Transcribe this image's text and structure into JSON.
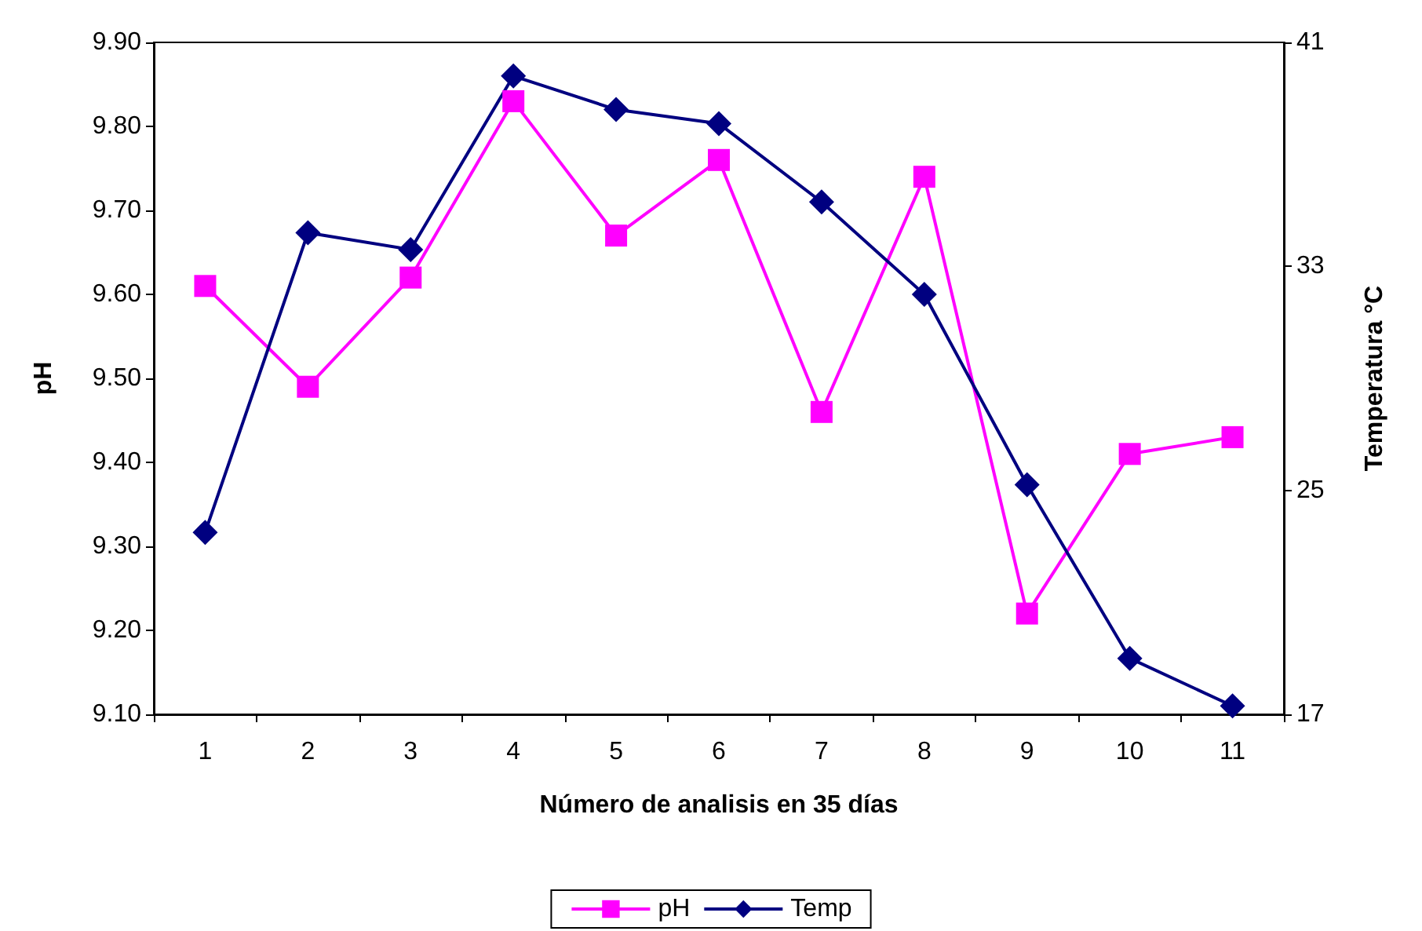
{
  "chart_data": {
    "type": "line",
    "xlabel": "Número de analisis en 35 días",
    "ylabel": "pH",
    "y2label": "Temperatura °C",
    "categories": [
      "1",
      "2",
      "3",
      "4",
      "5",
      "6",
      "7",
      "8",
      "9",
      "10",
      "11"
    ],
    "series": [
      {
        "name": "pH",
        "color": "#ff00ff",
        "marker": "square",
        "values": [
          9.61,
          9.49,
          9.62,
          9.83,
          9.67,
          9.76,
          9.46,
          9.74,
          9.22,
          9.41,
          9.43
        ]
      },
      {
        "name": "Temp",
        "color": "#000080",
        "marker": "diamond",
        "axis": "y2",
        "values": [
          23.5,
          34.2,
          33.6,
          39.8,
          38.6,
          38.1,
          35.3,
          32.0,
          25.2,
          19.0,
          17.3
        ]
      }
    ],
    "ylim": [
      9.1,
      9.9
    ],
    "yticks": [
      {
        "value": 9.1,
        "label": "9.10"
      },
      {
        "value": 9.2,
        "label": "9.20"
      },
      {
        "value": 9.3,
        "label": "9.30"
      },
      {
        "value": 9.4,
        "label": "9.40"
      },
      {
        "value": 9.5,
        "label": "9.50"
      },
      {
        "value": 9.6,
        "label": "9.60"
      },
      {
        "value": 9.7,
        "label": "9.70"
      },
      {
        "value": 9.8,
        "label": "9.80"
      },
      {
        "value": 9.9,
        "label": "9.90"
      }
    ],
    "y2lim": [
      17,
      41
    ],
    "y2ticks": [
      17,
      25,
      33,
      41
    ],
    "grid": false,
    "legend": "bottom",
    "line_style": "solid"
  }
}
